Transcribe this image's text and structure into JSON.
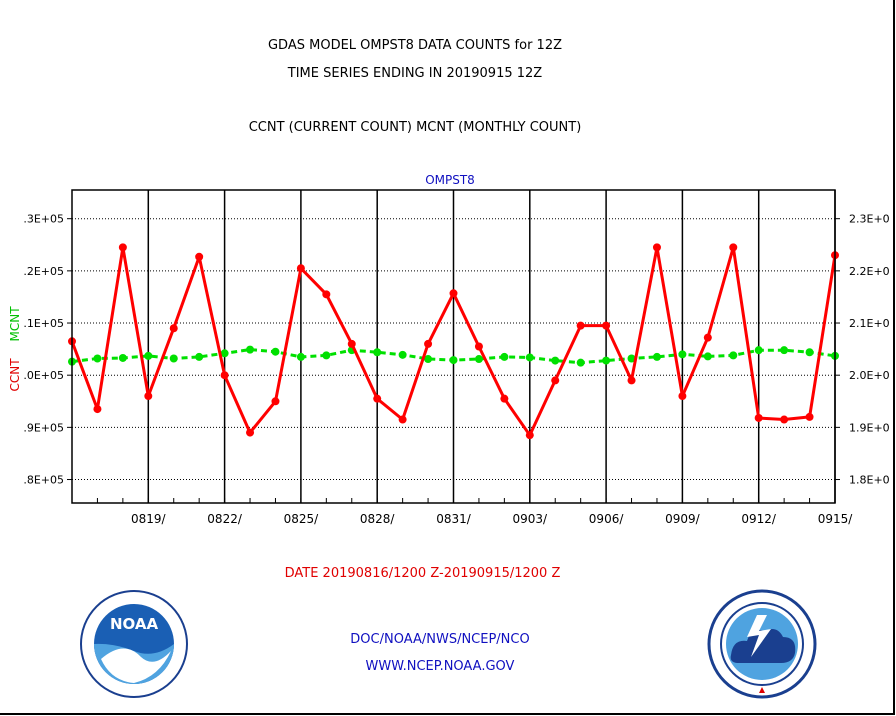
{
  "header": {
    "title_line1": "GDAS MODEL OMPST8 DATA COUNTS for 12Z",
    "title_line2": "TIME SERIES ENDING IN 20190915 12Z",
    "subtitle": "CCNT (CURRENT COUNT) MCNT (MONTHLY COUNT)"
  },
  "footer": {
    "date_range": "DATE 20190816/1200 Z-20190915/1200 Z",
    "org": "DOC/NOAA/NWS/NCEP/NCO",
    "url": "WWW.NCEP.NOAA.GOV"
  },
  "logos": {
    "left": {
      "icon": "noaa-logo-icon",
      "text": "NOAA"
    },
    "right": {
      "icon": "nws-logo-icon"
    }
  },
  "colors": {
    "ccnt": "#ff0000",
    "mcnt": "#00e000",
    "panel_title": "#1010c0",
    "date_text": "#e00000",
    "footer_text": "#1010c0"
  },
  "chart_data": {
    "type": "line",
    "panel_title": "OMPST8",
    "xlabel": "",
    "ylabel_left": "CCNT",
    "ylabel_right": "MCNT",
    "x_tick_labels": [
      "0819/",
      "0822/",
      "0825/",
      "0828/",
      "0831/",
      "0903/",
      "0906/",
      "0909/",
      "0912/",
      "0915/"
    ],
    "y_left_tick_labels": [
      ".8E+05",
      ".9E+05",
      ".0E+05",
      ".1E+05",
      ".2E+05",
      ".3E+05"
    ],
    "y_left_tick_values": [
      0,
      1,
      2,
      3,
      4,
      5
    ],
    "y_right_tick_labels": [
      "1.8E+0",
      "1.9E+0",
      "2.0E+0",
      "2.1E+0",
      "2.2E+0",
      "2.3E+0"
    ],
    "y_right_tick_values": [
      0,
      1,
      2,
      3,
      4,
      5
    ],
    "x_range": [
      "2019-08-16",
      "2019-09-15"
    ],
    "ylim": [
      -0.45,
      5.55
    ],
    "grid": true,
    "series": [
      {
        "name": "CCNT",
        "x": [
          "2019-08-16",
          "2019-08-17",
          "2019-08-18",
          "2019-08-19",
          "2019-08-20",
          "2019-08-21",
          "2019-08-22",
          "2019-08-23",
          "2019-08-24",
          "2019-08-25",
          "2019-08-26",
          "2019-08-27",
          "2019-08-28",
          "2019-08-29",
          "2019-08-30",
          "2019-08-31",
          "2019-09-01",
          "2019-09-02",
          "2019-09-03",
          "2019-09-04",
          "2019-09-05",
          "2019-09-06",
          "2019-09-07",
          "2019-09-08",
          "2019-09-09",
          "2019-09-10",
          "2019-09-11",
          "2019-09-12",
          "2019-09-13",
          "2019-09-14",
          "2019-09-15"
        ],
        "values": [
          2.65,
          1.35,
          4.45,
          1.6,
          2.9,
          4.27,
          2.0,
          0.9,
          1.5,
          4.05,
          3.55,
          2.6,
          1.55,
          1.15,
          2.6,
          3.57,
          2.55,
          1.55,
          0.85,
          1.9,
          2.95,
          2.95,
          1.9,
          4.45,
          1.6,
          2.72,
          4.45,
          1.18,
          1.15,
          1.2,
          4.3
        ]
      },
      {
        "name": "MCNT",
        "x": [
          "2019-08-16",
          "2019-08-17",
          "2019-08-18",
          "2019-08-19",
          "2019-08-20",
          "2019-08-21",
          "2019-08-22",
          "2019-08-23",
          "2019-08-24",
          "2019-08-25",
          "2019-08-26",
          "2019-08-27",
          "2019-08-28",
          "2019-08-29",
          "2019-08-30",
          "2019-08-31",
          "2019-09-01",
          "2019-09-02",
          "2019-09-03",
          "2019-09-04",
          "2019-09-05",
          "2019-09-06",
          "2019-09-07",
          "2019-09-08",
          "2019-09-09",
          "2019-09-10",
          "2019-09-11",
          "2019-09-12",
          "2019-09-13",
          "2019-09-14",
          "2019-09-15"
        ],
        "values": [
          2.26,
          2.32,
          2.33,
          2.37,
          2.32,
          2.35,
          2.42,
          2.49,
          2.45,
          2.35,
          2.38,
          2.48,
          2.44,
          2.39,
          2.31,
          2.29,
          2.31,
          2.35,
          2.34,
          2.28,
          2.24,
          2.28,
          2.32,
          2.35,
          2.4,
          2.36,
          2.38,
          2.48,
          2.48,
          2.44,
          2.37
        ]
      }
    ]
  }
}
